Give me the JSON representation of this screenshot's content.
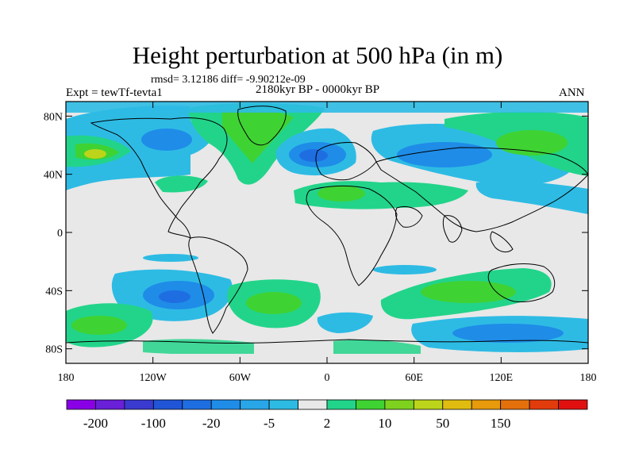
{
  "header": {
    "title": "Height perturbation at 500 hPa (in m)",
    "rmsd_line": "rmsd= 3.12186  diff= -9.90212e-09",
    "experiment": "Expt = tewTf-tevta1",
    "period": "2180kyr BP - 0000kyr BP",
    "season": "ANN"
  },
  "axes": {
    "lat_labels": [
      {
        "text": "80N",
        "lat": 80
      },
      {
        "text": "40N",
        "lat": 40
      },
      {
        "text": "0",
        "lat": 0
      },
      {
        "text": "40S",
        "lat": -40
      },
      {
        "text": "80S",
        "lat": -80
      }
    ],
    "lon_labels": [
      {
        "text": "180",
        "lon": -180
      },
      {
        "text": "120W",
        "lon": -120
      },
      {
        "text": "60W",
        "lon": -60
      },
      {
        "text": "0",
        "lon": 0
      },
      {
        "text": "60E",
        "lon": 60
      },
      {
        "text": "120E",
        "lon": 120
      },
      {
        "text": "180",
        "lon": 180
      }
    ],
    "lon_range": [
      -180,
      180
    ],
    "lat_range": [
      -90,
      90
    ]
  },
  "colorbar": {
    "colors": [
      "#8a00e6",
      "#6a1fd8",
      "#3a3ad0",
      "#1f55d6",
      "#1e6ee2",
      "#1f8ce8",
      "#29a6e8",
      "#2dbbe4",
      "#e8e8e8",
      "#22d48a",
      "#3fd233",
      "#7ed21e",
      "#bcd41a",
      "#e0bc10",
      "#e69a0c",
      "#e4700c",
      "#e23c0c",
      "#e01010"
    ],
    "labels": [
      {
        "text": "-200",
        "boundary": 1
      },
      {
        "text": "-100",
        "boundary": 3
      },
      {
        "text": "-20",
        "boundary": 5
      },
      {
        "text": "-5",
        "boundary": 7
      },
      {
        "text": "2",
        "boundary": 9
      },
      {
        "text": "10",
        "boundary": 11
      },
      {
        "text": "50",
        "boundary": 13
      },
      {
        "text": "150",
        "boundary": 15
      }
    ]
  },
  "field_colors": {
    "background": "#e8e8e8",
    "light_blue": "#2dbbe4",
    "blue": "#1f8ce8",
    "mid_blue": "#1e6ee2",
    "deep_blue": "#1f55d6",
    "teal": "#22d48a",
    "green": "#3fd233",
    "yellow_green": "#bcd41a"
  }
}
